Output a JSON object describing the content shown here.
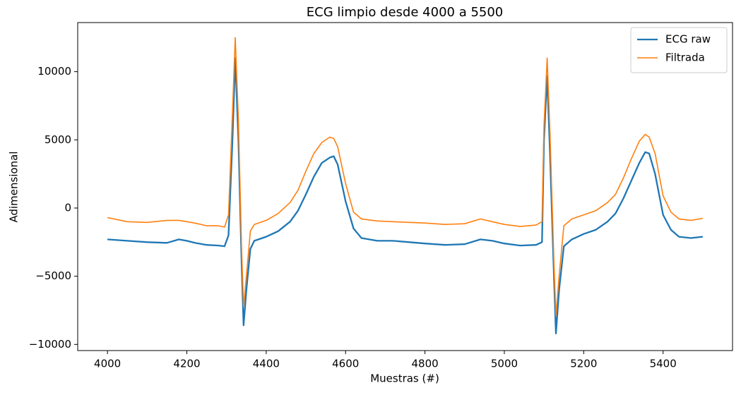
{
  "chart_data": {
    "type": "line",
    "title": "ECG limpio desde 4000 a 5500",
    "x_label": "Muestras (#)",
    "y_label": "Adimensional",
    "x": [
      4000,
      4050,
      4100,
      4150,
      4180,
      4200,
      4220,
      4250,
      4280,
      4295,
      4305,
      4315,
      4322,
      4330,
      4338,
      4343,
      4350,
      4360,
      4370,
      4400,
      4430,
      4460,
      4480,
      4500,
      4520,
      4540,
      4560,
      4570,
      4580,
      4600,
      4620,
      4640,
      4680,
      4720,
      4760,
      4800,
      4850,
      4900,
      4940,
      4970,
      5000,
      5040,
      5080,
      5095,
      5100,
      5108,
      5115,
      5125,
      5130,
      5138,
      5150,
      5170,
      5200,
      5230,
      5260,
      5280,
      5300,
      5320,
      5340,
      5355,
      5365,
      5380,
      5400,
      5420,
      5440,
      5470,
      5500
    ],
    "series": [
      {
        "name": "ECG raw",
        "color": "#1f77b4",
        "values": [
          -2300,
          -2400,
          -2500,
          -2550,
          -2300,
          -2400,
          -2550,
          -2700,
          -2750,
          -2800,
          -2000,
          5000,
          11000,
          5000,
          -4000,
          -8600,
          -6000,
          -3000,
          -2400,
          -2100,
          -1700,
          -1000,
          -200,
          1000,
          2300,
          3300,
          3700,
          3800,
          3200,
          500,
          -1500,
          -2200,
          -2400,
          -2400,
          -2500,
          -2600,
          -2700,
          -2650,
          -2300,
          -2400,
          -2600,
          -2750,
          -2700,
          -2500,
          5000,
          9700,
          4000,
          -5000,
          -9200,
          -6000,
          -2800,
          -2300,
          -1900,
          -1600,
          -1000,
          -400,
          700,
          2000,
          3300,
          4100,
          4000,
          2500,
          -500,
          -1600,
          -2100,
          -2200,
          -2100
        ]
      },
      {
        "name": "Filtrada",
        "color": "#ff7f0e",
        "values": [
          -700,
          -1000,
          -1050,
          -900,
          -900,
          -1000,
          -1100,
          -1300,
          -1300,
          -1400,
          -500,
          7000,
          12500,
          6500,
          -3000,
          -7200,
          -5000,
          -1700,
          -1200,
          -900,
          -400,
          400,
          1300,
          2700,
          4000,
          4800,
          5200,
          5100,
          4500,
          1800,
          -300,
          -800,
          -950,
          -1000,
          -1050,
          -1100,
          -1200,
          -1150,
          -800,
          -1000,
          -1200,
          -1350,
          -1250,
          -1000,
          6000,
          11000,
          5500,
          -4000,
          -7900,
          -5000,
          -1300,
          -800,
          -500,
          -200,
          400,
          1000,
          2200,
          3600,
          4900,
          5400,
          5200,
          4000,
          900,
          -300,
          -800,
          -900,
          -750
        ]
      }
    ],
    "xlim": [
      3925,
      5575
    ],
    "xticks": [
      4000,
      4200,
      4400,
      4600,
      4800,
      5000,
      5200,
      5400
    ],
    "ylim": [
      -10450,
      13600
    ],
    "yticks": [
      {
        "value": -10000,
        "label": "−10000"
      },
      {
        "value": -5000,
        "label": "−5000"
      },
      0,
      5000,
      10000
    ],
    "legend": "upper right",
    "grid": false
  }
}
